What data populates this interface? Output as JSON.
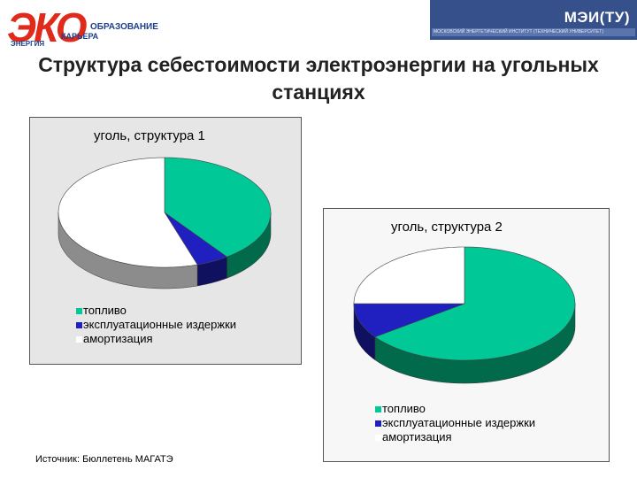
{
  "header": {
    "logo_left_big": "ЭКО",
    "logo_left_line1": "ОБРАЗОВАНИЕ",
    "logo_left_line2": "КАРЬЕРА",
    "logo_left_line3": "ЭНЕРГИЯ",
    "logo_right_brand": "МЭИ(ТУ)",
    "logo_right_sub": "МОСКОВСКИЙ ЭНЕРГЕТИЧЕСКИЙ ИНСТИТУТ (ТЕХНИЧЕСКИЙ УНИВЕРСИТЕТ)"
  },
  "title": "Структура себестоимости электроэнергии на угольных станциях",
  "source": "Источник: Бюллетень МАГАТЭ",
  "colors": {
    "fuel": "#00c896",
    "fuel_side": "#006a4a",
    "ops": "#2020c0",
    "ops_side": "#101060",
    "amort": "#ffffff",
    "amort_side": "#8c8c8c"
  },
  "chart_data": [
    {
      "type": "pie",
      "title": "уголь, структура 1",
      "categories": [
        "топливо",
        "эксплуатационные издержки",
        "амортизация"
      ],
      "values": [
        40,
        5,
        55
      ],
      "legend": "bottom-left"
    },
    {
      "type": "pie",
      "title": "уголь, структура 2",
      "categories": [
        "топливо",
        "эксплуатационные издержки",
        "амортизация"
      ],
      "values": [
        65,
        10,
        25
      ],
      "legend": "bottom-left"
    }
  ]
}
